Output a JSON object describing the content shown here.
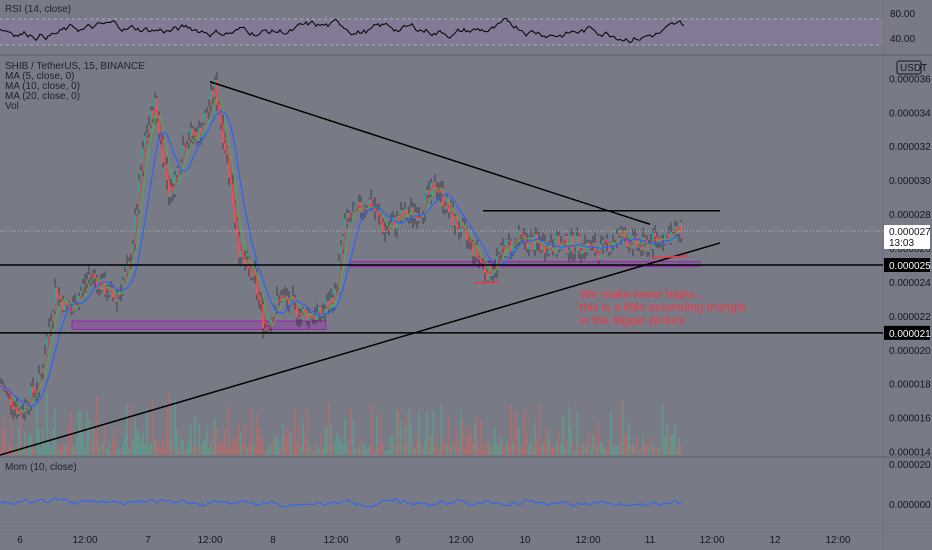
{
  "rsi_panel": {
    "legend": "RSI (14, close)",
    "levels": [
      "80.00",
      "40.00"
    ]
  },
  "main_panel": {
    "legend": [
      "SHIB / TetherUS, 15, BINANCE",
      "MA (5, close, 0)",
      "MA (10, close, 0)",
      "MA (20, close, 0)",
      "Vol"
    ],
    "currency_badge": "USDT",
    "price_axis": [
      "0.000036",
      "0.000034",
      "0.000032",
      "0.000030",
      "0.000028",
      "0.000026",
      "0.000024",
      "0.000022",
      "0.000020",
      "0.000018",
      "0.000016",
      "0.000014"
    ],
    "current_price": "0.000027",
    "countdown": "13:03",
    "hline_tags": [
      "0.000025",
      "0.000021"
    ],
    "annotation": [
      "We make lower highs...",
      "this is a little ascending triangle",
      "in the bigger picture"
    ]
  },
  "mom_panel": {
    "legend": "Mom (10, close)",
    "axis": [
      "0.000020",
      "0.000000"
    ]
  },
  "time_axis": [
    "6",
    "12:00",
    "7",
    "12:00",
    "8",
    "12:00",
    "9",
    "12:00",
    "10",
    "12:00",
    "11",
    "12:00",
    "12",
    "12:00"
  ],
  "colors": {
    "background": "#787b86",
    "up": "#26a69a",
    "down": "#ef5350",
    "ma_blue": "#2962ff",
    "ma_green": "#4caf50",
    "ma_red": "#f23645",
    "zone": "#9c27b0",
    "annotation": "#f23645"
  },
  "chart_data": [
    {
      "type": "line",
      "name": "price",
      "x": [
        "6",
        "12:00",
        "7",
        "12:00",
        "8",
        "12:00",
        "9",
        "12:00",
        "10",
        "12:00",
        "11",
        "12:00",
        "12",
        "12:00"
      ],
      "y_axis_ticks": [
        3.6e-05,
        3.4e-05,
        3.2e-05,
        3e-05,
        2.8e-05,
        2.6e-05,
        2.4e-05,
        2.2e-05,
        2e-05,
        1.8e-05,
        1.6e-05,
        1.4e-05
      ],
      "ylim": [
        1.38e-05,
        3.72e-05
      ],
      "path_points": [
        [
          0,
          1.8e-05
        ],
        [
          20,
          1.63e-05
        ],
        [
          40,
          1.82e-05
        ],
        [
          55,
          2.35e-05
        ],
        [
          70,
          2.22e-05
        ],
        [
          90,
          2.45e-05
        ],
        [
          115,
          2.3e-05
        ],
        [
          130,
          2.5e-05
        ],
        [
          145,
          3.25e-05
        ],
        [
          155,
          3.45e-05
        ],
        [
          170,
          2.9e-05
        ],
        [
          185,
          3.25e-05
        ],
        [
          200,
          3.28e-05
        ],
        [
          215,
          3.55e-05
        ],
        [
          228,
          3.1e-05
        ],
        [
          240,
          2.55e-05
        ],
        [
          255,
          2.4e-05
        ],
        [
          265,
          2.12e-05
        ],
        [
          280,
          2.32e-05
        ],
        [
          300,
          2.22e-05
        ],
        [
          320,
          2.2e-05
        ],
        [
          335,
          2.32e-05
        ],
        [
          345,
          2.75e-05
        ],
        [
          355,
          2.8e-05
        ],
        [
          370,
          2.88e-05
        ],
        [
          385,
          2.7e-05
        ],
        [
          400,
          2.78e-05
        ],
        [
          420,
          2.82e-05
        ],
        [
          436,
          2.98e-05
        ],
        [
          452,
          2.78e-05
        ],
        [
          470,
          2.62e-05
        ],
        [
          488,
          2.45e-05
        ],
        [
          505,
          2.6e-05
        ],
        [
          520,
          2.65e-05
        ],
        [
          540,
          2.62e-05
        ],
        [
          560,
          2.62e-05
        ],
        [
          580,
          2.62e-05
        ],
        [
          600,
          2.58e-05
        ],
        [
          620,
          2.68e-05
        ],
        [
          640,
          2.6e-05
        ],
        [
          660,
          2.66e-05
        ],
        [
          680,
          2.7e-05
        ]
      ],
      "hlines": [
        2.5e-05,
        2.1e-05
      ],
      "zones": [
        [
          2.12e-05,
          2.17e-05
        ],
        [
          2.49e-05,
          2.52e-05
        ]
      ],
      "trendlines": [
        [
          [
            210,
            3.58e-05
          ],
          [
            650,
            2.74e-05
          ]
        ],
        [
          [
            0,
            1.38e-05
          ],
          [
            720,
            2.63e-05
          ]
        ],
        [
          [
            483,
            2.82e-05
          ],
          [
            720,
            2.82e-05
          ]
        ]
      ]
    },
    {
      "type": "line",
      "name": "RSI",
      "levels": [
        80,
        40
      ]
    },
    {
      "type": "line",
      "name": "Mom",
      "axis_ticks": [
        2e-05,
        0.0
      ]
    }
  ]
}
